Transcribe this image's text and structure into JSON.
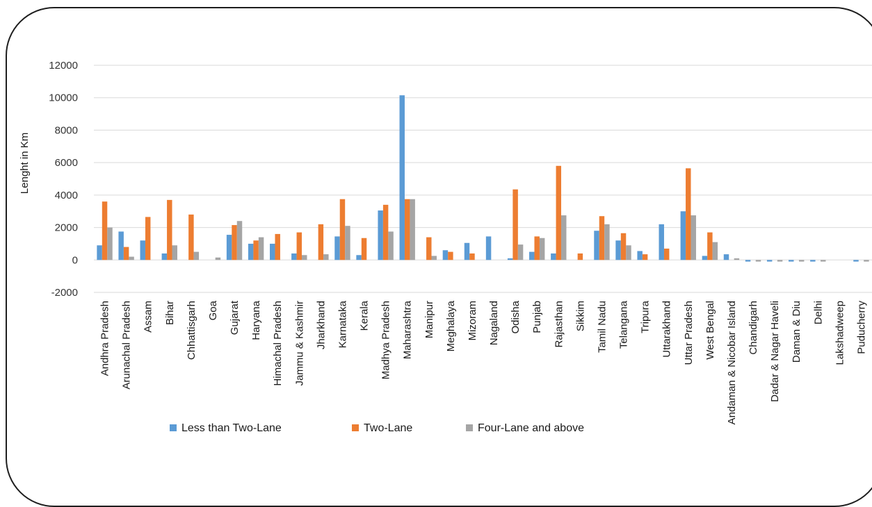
{
  "chart_data": {
    "type": "bar",
    "title": "",
    "xlabel": "",
    "ylabel": "Lenght in Km",
    "ylim": [
      -2000,
      12000
    ],
    "yticks": [
      -2000,
      0,
      2000,
      4000,
      6000,
      8000,
      10000,
      12000
    ],
    "grid": true,
    "legend_position": "bottom",
    "categories": [
      "Andhra Pradesh",
      "Arunachal Pradesh",
      "Assam",
      "Bihar",
      "Chhattisgarh",
      "Goa",
      "Gujarat",
      "Haryana",
      "Himachal Pradesh",
      "Jammu & Kashmir",
      "Jharkhand",
      "Karnataka",
      "Kerala",
      "Madhya Pradesh",
      "Maharashtra",
      "Manipur",
      "Meghalaya",
      "Mizoram",
      "Nagaland",
      "Odisha",
      "Punjab",
      "Rajasthan",
      "Sikkim",
      "Tamil Nadu",
      "Telangana",
      "Tripura",
      "Uttarakhand",
      "Uttar Pradesh",
      "West Bengal",
      "Andaman & Nicobar Island",
      "Chandigarh",
      "Dadar & Nagar Haveli",
      "Daman & Diu",
      "Delhi",
      "Lakshadweep",
      "Puducherry"
    ],
    "series": [
      {
        "name": "Less than Two-Lane",
        "color": "#5b9bd5",
        "values": [
          900,
          1750,
          1200,
          400,
          0,
          0,
          1550,
          1000,
          1000,
          400,
          0,
          1450,
          300,
          3050,
          10150,
          0,
          600,
          1050,
          1450,
          100,
          500,
          400,
          0,
          1800,
          1200,
          550,
          2200,
          3000,
          250,
          350,
          -100,
          -100,
          -100,
          -100,
          0,
          -100
        ]
      },
      {
        "name": "Two-Lane",
        "color": "#ed7d31",
        "values": [
          3600,
          800,
          2650,
          3700,
          2800,
          0,
          2150,
          1200,
          1600,
          1700,
          2200,
          3750,
          1350,
          3400,
          3750,
          1400,
          500,
          400,
          0,
          4350,
          1450,
          5800,
          400,
          2700,
          1650,
          350,
          700,
          5650,
          1700,
          0,
          0,
          0,
          0,
          0,
          0,
          0
        ]
      },
      {
        "name": "Four-Lane and above",
        "color": "#a5a5a5",
        "values": [
          2000,
          200,
          0,
          900,
          500,
          150,
          2400,
          1400,
          0,
          300,
          350,
          2100,
          0,
          1750,
          3750,
          250,
          0,
          0,
          0,
          950,
          1350,
          2750,
          0,
          2200,
          900,
          0,
          0,
          2750,
          1100,
          100,
          -100,
          -100,
          -100,
          -100,
          0,
          -100
        ]
      }
    ]
  }
}
